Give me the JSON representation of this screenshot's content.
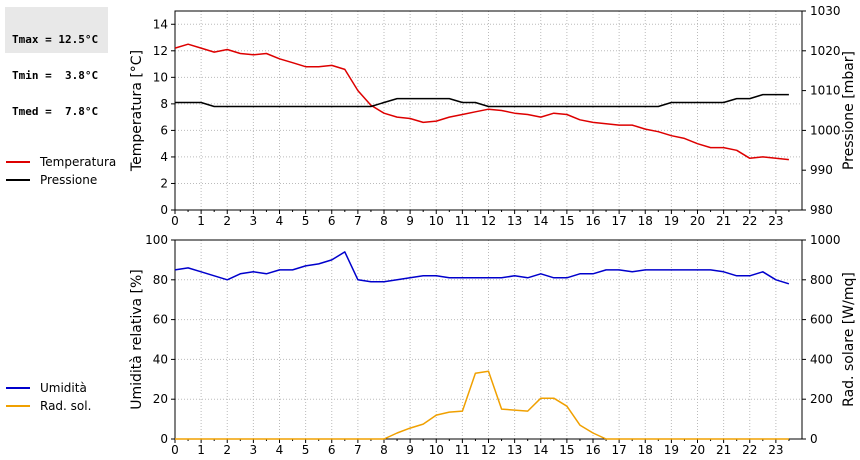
{
  "stats": {
    "tmax": "Tmax = 12.5°C",
    "tmin": "Tmin =  3.8°C",
    "tmed": "Tmed =  7.8°C"
  },
  "colors": {
    "temperature": "#dd0000",
    "pressure": "#000000",
    "humidity": "#0000cc",
    "solar": "#f0a000",
    "grid": "#bbbbbb"
  },
  "chart_data": [
    {
      "type": "line",
      "xlabel": "",
      "ylabel": "Temperatura [°C]",
      "y2label": "Pressione [mbar]",
      "xlim": [
        0,
        24
      ],
      "ylim": [
        0,
        15
      ],
      "y2lim": [
        980,
        1030
      ],
      "x_ticks": [
        "0",
        "1",
        "2",
        "3",
        "4",
        "5",
        "6",
        "7",
        "8",
        "9",
        "10",
        "11",
        "12",
        "13",
        "14",
        "15",
        "16",
        "17",
        "18",
        "19",
        "20",
        "21",
        "22",
        "23"
      ],
      "y_ticks": [
        "0",
        "2",
        "4",
        "6",
        "8",
        "10",
        "12",
        "14"
      ],
      "y2_ticks": [
        "980",
        "990",
        "1000",
        "1010",
        "1020",
        "1030"
      ],
      "grid": true,
      "series": [
        {
          "name": "Temperatura",
          "axis": "left",
          "color": "#dd0000",
          "x": [
            0,
            0.5,
            1,
            1.5,
            2,
            2.5,
            3,
            3.5,
            4,
            4.5,
            5,
            5.5,
            6,
            6.5,
            7,
            7.5,
            8,
            8.5,
            9,
            9.5,
            10,
            10.5,
            11,
            11.5,
            12,
            12.5,
            13,
            13.5,
            14,
            14.5,
            15,
            15.5,
            16,
            16.5,
            17,
            17.5,
            18,
            18.5,
            19,
            19.5,
            20,
            20.5,
            21,
            21.5,
            22,
            22.5,
            23,
            23.5
          ],
          "values": [
            12.2,
            12.5,
            12.2,
            11.9,
            12.1,
            11.8,
            11.7,
            11.8,
            11.4,
            11.1,
            10.8,
            10.8,
            10.9,
            10.6,
            9.0,
            7.9,
            7.3,
            7.0,
            6.9,
            6.6,
            6.7,
            7.0,
            7.2,
            7.4,
            7.6,
            7.5,
            7.3,
            7.2,
            7.0,
            7.3,
            7.2,
            6.8,
            6.6,
            6.5,
            6.4,
            6.4,
            6.1,
            5.9,
            5.6,
            5.4,
            5.0,
            4.7,
            4.7,
            4.5,
            3.9,
            4.0,
            3.9,
            3.8
          ]
        },
        {
          "name": "Pressione",
          "axis": "right",
          "color": "#000000",
          "x": [
            0,
            1,
            1.5,
            2,
            3,
            4,
            5,
            6,
            7,
            7.5,
            8,
            8.5,
            9,
            10,
            10.5,
            11,
            11.5,
            12,
            13,
            14,
            15,
            16,
            17,
            18,
            18.5,
            19,
            20,
            21,
            21.5,
            22,
            22.5,
            23,
            23.5
          ],
          "values": [
            1007,
            1007,
            1006,
            1006,
            1006,
            1006,
            1006,
            1006,
            1006,
            1006,
            1007,
            1008,
            1008,
            1008,
            1008,
            1007,
            1007,
            1006,
            1006,
            1006,
            1006,
            1006,
            1006,
            1006,
            1006,
            1007,
            1007,
            1007,
            1008,
            1008,
            1009,
            1009,
            1009
          ]
        }
      ]
    },
    {
      "type": "line",
      "xlabel": "",
      "ylabel": "Umidità relativa [%]",
      "y2label": "Rad. solare [W/mq]",
      "xlim": [
        0,
        24
      ],
      "ylim": [
        0,
        100
      ],
      "y2lim": [
        0,
        1000
      ],
      "x_ticks": [
        "0",
        "1",
        "2",
        "3",
        "4",
        "5",
        "6",
        "7",
        "8",
        "9",
        "10",
        "11",
        "12",
        "13",
        "14",
        "15",
        "16",
        "17",
        "18",
        "19",
        "20",
        "21",
        "22",
        "23"
      ],
      "y_ticks": [
        "0",
        "20",
        "40",
        "60",
        "80",
        "100"
      ],
      "y2_ticks": [
        "0",
        "200",
        "400",
        "600",
        "800",
        "1000"
      ],
      "grid": true,
      "series": [
        {
          "name": "Umidità",
          "axis": "left",
          "color": "#0000cc",
          "x": [
            0,
            0.5,
            1,
            1.5,
            2,
            2.5,
            3,
            3.5,
            4,
            4.5,
            5,
            5.5,
            6,
            6.5,
            7,
            7.5,
            8,
            8.5,
            9,
            9.5,
            10,
            10.5,
            11,
            11.5,
            12,
            12.5,
            13,
            13.5,
            14,
            14.5,
            15,
            15.5,
            16,
            16.5,
            17,
            17.5,
            18,
            18.5,
            19,
            19.5,
            20,
            20.5,
            21,
            21.5,
            22,
            22.5,
            23,
            23.5
          ],
          "values": [
            85,
            86,
            84,
            82,
            80,
            83,
            84,
            83,
            85,
            85,
            87,
            88,
            90,
            94,
            80,
            79,
            79,
            80,
            81,
            82,
            82,
            81,
            81,
            81,
            81,
            81,
            82,
            81,
            83,
            81,
            81,
            83,
            83,
            85,
            85,
            84,
            85,
            85,
            85,
            85,
            85,
            85,
            84,
            82,
            82,
            84,
            80,
            78
          ]
        },
        {
          "name": "Rad. sol.",
          "axis": "right",
          "color": "#f0a000",
          "x": [
            0,
            1,
            2,
            3,
            4,
            5,
            6,
            7,
            8,
            8.5,
            9,
            9.5,
            10,
            10.5,
            11,
            11.5,
            12,
            12.5,
            13,
            13.5,
            14,
            14.5,
            15,
            15.5,
            16,
            16.5,
            17,
            18,
            19,
            20,
            21,
            22,
            23,
            23.5
          ],
          "values": [
            0,
            0,
            0,
            0,
            0,
            0,
            0,
            0,
            0,
            30,
            55,
            75,
            120,
            135,
            140,
            330,
            340,
            150,
            145,
            140,
            205,
            205,
            165,
            70,
            30,
            0,
            0,
            0,
            0,
            0,
            0,
            0,
            0,
            0
          ]
        }
      ]
    }
  ]
}
